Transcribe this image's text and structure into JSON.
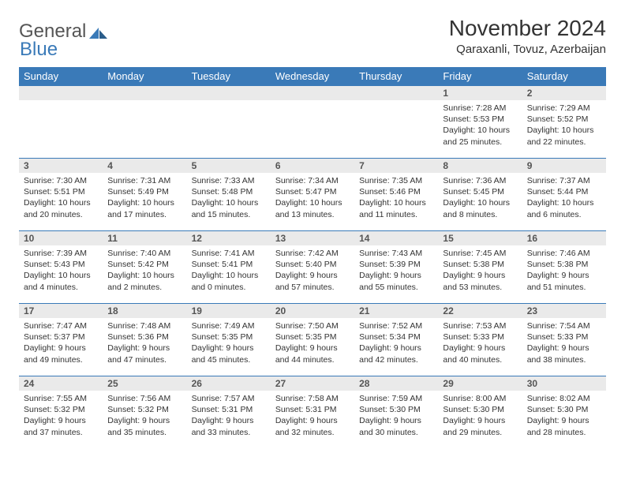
{
  "logo": {
    "text_gray": "General",
    "text_blue": "Blue"
  },
  "title": {
    "month": "November 2024",
    "location": "Qaraxanli, Tovuz, Azerbaijan"
  },
  "columns": [
    "Sunday",
    "Monday",
    "Tuesday",
    "Wednesday",
    "Thursday",
    "Friday",
    "Saturday"
  ],
  "colors": {
    "header_bg": "#3a7ab8",
    "header_fg": "#ffffff",
    "daynum_bg": "#eaeaea",
    "border": "#3a7ab8",
    "text": "#333333",
    "background": "#ffffff"
  },
  "weeks": [
    [
      null,
      null,
      null,
      null,
      null,
      {
        "n": "1",
        "sr": "7:28 AM",
        "ss": "5:53 PM",
        "dl": "10 hours and 25 minutes."
      },
      {
        "n": "2",
        "sr": "7:29 AM",
        "ss": "5:52 PM",
        "dl": "10 hours and 22 minutes."
      }
    ],
    [
      {
        "n": "3",
        "sr": "7:30 AM",
        "ss": "5:51 PM",
        "dl": "10 hours and 20 minutes."
      },
      {
        "n": "4",
        "sr": "7:31 AM",
        "ss": "5:49 PM",
        "dl": "10 hours and 17 minutes."
      },
      {
        "n": "5",
        "sr": "7:33 AM",
        "ss": "5:48 PM",
        "dl": "10 hours and 15 minutes."
      },
      {
        "n": "6",
        "sr": "7:34 AM",
        "ss": "5:47 PM",
        "dl": "10 hours and 13 minutes."
      },
      {
        "n": "7",
        "sr": "7:35 AM",
        "ss": "5:46 PM",
        "dl": "10 hours and 11 minutes."
      },
      {
        "n": "8",
        "sr": "7:36 AM",
        "ss": "5:45 PM",
        "dl": "10 hours and 8 minutes."
      },
      {
        "n": "9",
        "sr": "7:37 AM",
        "ss": "5:44 PM",
        "dl": "10 hours and 6 minutes."
      }
    ],
    [
      {
        "n": "10",
        "sr": "7:39 AM",
        "ss": "5:43 PM",
        "dl": "10 hours and 4 minutes."
      },
      {
        "n": "11",
        "sr": "7:40 AM",
        "ss": "5:42 PM",
        "dl": "10 hours and 2 minutes."
      },
      {
        "n": "12",
        "sr": "7:41 AM",
        "ss": "5:41 PM",
        "dl": "10 hours and 0 minutes."
      },
      {
        "n": "13",
        "sr": "7:42 AM",
        "ss": "5:40 PM",
        "dl": "9 hours and 57 minutes."
      },
      {
        "n": "14",
        "sr": "7:43 AM",
        "ss": "5:39 PM",
        "dl": "9 hours and 55 minutes."
      },
      {
        "n": "15",
        "sr": "7:45 AM",
        "ss": "5:38 PM",
        "dl": "9 hours and 53 minutes."
      },
      {
        "n": "16",
        "sr": "7:46 AM",
        "ss": "5:38 PM",
        "dl": "9 hours and 51 minutes."
      }
    ],
    [
      {
        "n": "17",
        "sr": "7:47 AM",
        "ss": "5:37 PM",
        "dl": "9 hours and 49 minutes."
      },
      {
        "n": "18",
        "sr": "7:48 AM",
        "ss": "5:36 PM",
        "dl": "9 hours and 47 minutes."
      },
      {
        "n": "19",
        "sr": "7:49 AM",
        "ss": "5:35 PM",
        "dl": "9 hours and 45 minutes."
      },
      {
        "n": "20",
        "sr": "7:50 AM",
        "ss": "5:35 PM",
        "dl": "9 hours and 44 minutes."
      },
      {
        "n": "21",
        "sr": "7:52 AM",
        "ss": "5:34 PM",
        "dl": "9 hours and 42 minutes."
      },
      {
        "n": "22",
        "sr": "7:53 AM",
        "ss": "5:33 PM",
        "dl": "9 hours and 40 minutes."
      },
      {
        "n": "23",
        "sr": "7:54 AM",
        "ss": "5:33 PM",
        "dl": "9 hours and 38 minutes."
      }
    ],
    [
      {
        "n": "24",
        "sr": "7:55 AM",
        "ss": "5:32 PM",
        "dl": "9 hours and 37 minutes."
      },
      {
        "n": "25",
        "sr": "7:56 AM",
        "ss": "5:32 PM",
        "dl": "9 hours and 35 minutes."
      },
      {
        "n": "26",
        "sr": "7:57 AM",
        "ss": "5:31 PM",
        "dl": "9 hours and 33 minutes."
      },
      {
        "n": "27",
        "sr": "7:58 AM",
        "ss": "5:31 PM",
        "dl": "9 hours and 32 minutes."
      },
      {
        "n": "28",
        "sr": "7:59 AM",
        "ss": "5:30 PM",
        "dl": "9 hours and 30 minutes."
      },
      {
        "n": "29",
        "sr": "8:00 AM",
        "ss": "5:30 PM",
        "dl": "9 hours and 29 minutes."
      },
      {
        "n": "30",
        "sr": "8:02 AM",
        "ss": "5:30 PM",
        "dl": "9 hours and 28 minutes."
      }
    ]
  ],
  "labels": {
    "sunrise": "Sunrise:",
    "sunset": "Sunset:",
    "daylight": "Daylight:"
  }
}
